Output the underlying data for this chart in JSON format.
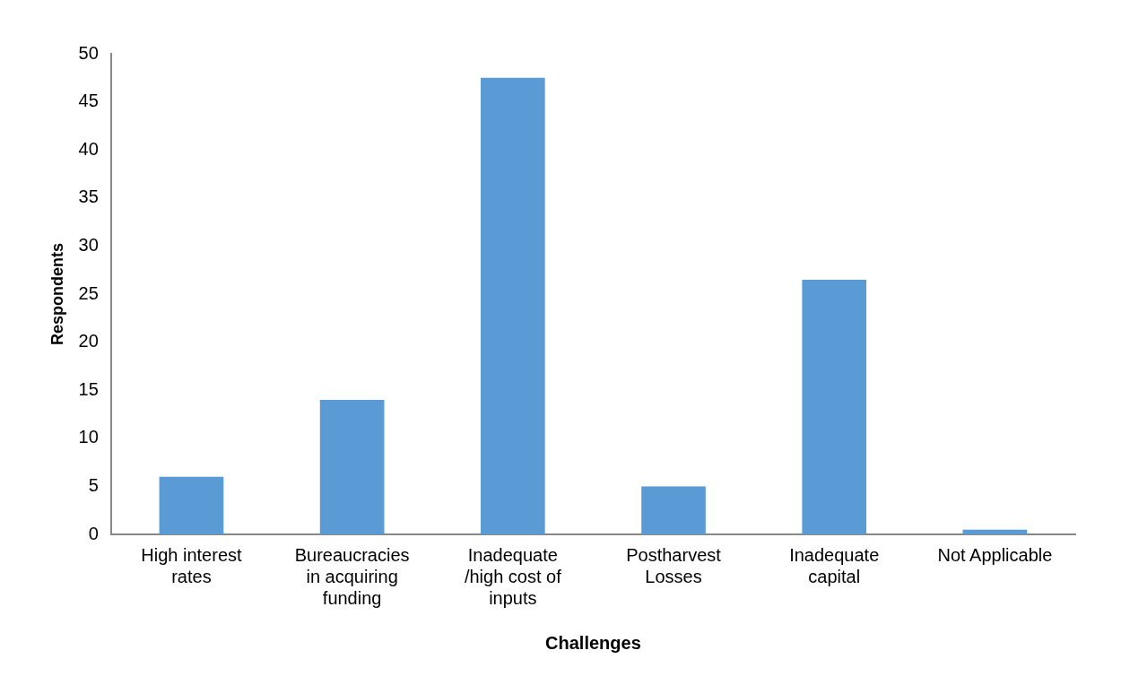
{
  "chart_data": {
    "type": "bar",
    "xlabel": "Challenges",
    "ylabel": "Respondents",
    "categories": [
      "High interest rates",
      "Bureaucracies in acquiring funding",
      "Inadequate /high cost of inputs",
      "Postharvest Losses",
      "Inadequate capital",
      "Not Applicable"
    ],
    "values": [
      6,
      14,
      47.5,
      5,
      26.5,
      0.5
    ],
    "color": "#5b9bd5",
    "ylim": [
      0,
      50
    ],
    "yticks": [
      0,
      5,
      10,
      15,
      20,
      25,
      30,
      35,
      40,
      45,
      50
    ],
    "grid": false,
    "legend": false
  }
}
